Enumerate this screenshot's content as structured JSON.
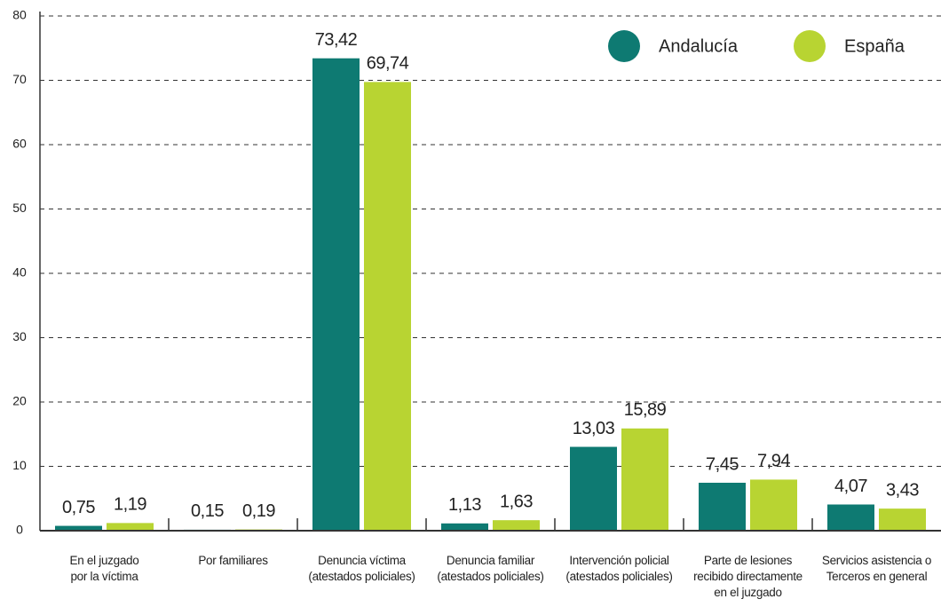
{
  "chart_data": {
    "type": "bar",
    "categories": [
      [
        "En el juzgado",
        "por la víctima"
      ],
      [
        "Por familiares"
      ],
      [
        "Denuncia víctima",
        "(atestados policiales)"
      ],
      [
        "Denuncia familiar",
        "(atestados policiales)"
      ],
      [
        "Intervención policial",
        "(atestados policiales)"
      ],
      [
        "Parte de lesiones",
        "recibido directamente",
        "en el juzgado"
      ],
      [
        "Servicios asistencia o",
        "Terceros en general"
      ]
    ],
    "series": [
      {
        "name": "Andalucía",
        "color": "#0e7a72",
        "values": [
          0.75,
          0.15,
          73.42,
          1.13,
          13.03,
          7.45,
          4.07
        ],
        "value_labels": [
          "0,75",
          "0,15",
          "73,42",
          "1,13",
          "13,03",
          "7,45",
          "4,07"
        ]
      },
      {
        "name": "España",
        "color": "#b8d432",
        "values": [
          1.19,
          0.19,
          69.74,
          1.63,
          15.89,
          7.94,
          3.43
        ],
        "value_labels": [
          "1,19",
          "0,19",
          "69,74",
          "1,63",
          "15,89",
          "7,94",
          "3,43"
        ]
      }
    ],
    "ylim": [
      0,
      80
    ],
    "yticks": [
      0,
      10,
      20,
      30,
      40,
      50,
      60,
      70,
      80
    ],
    "grid": true,
    "legend": "top-right"
  }
}
